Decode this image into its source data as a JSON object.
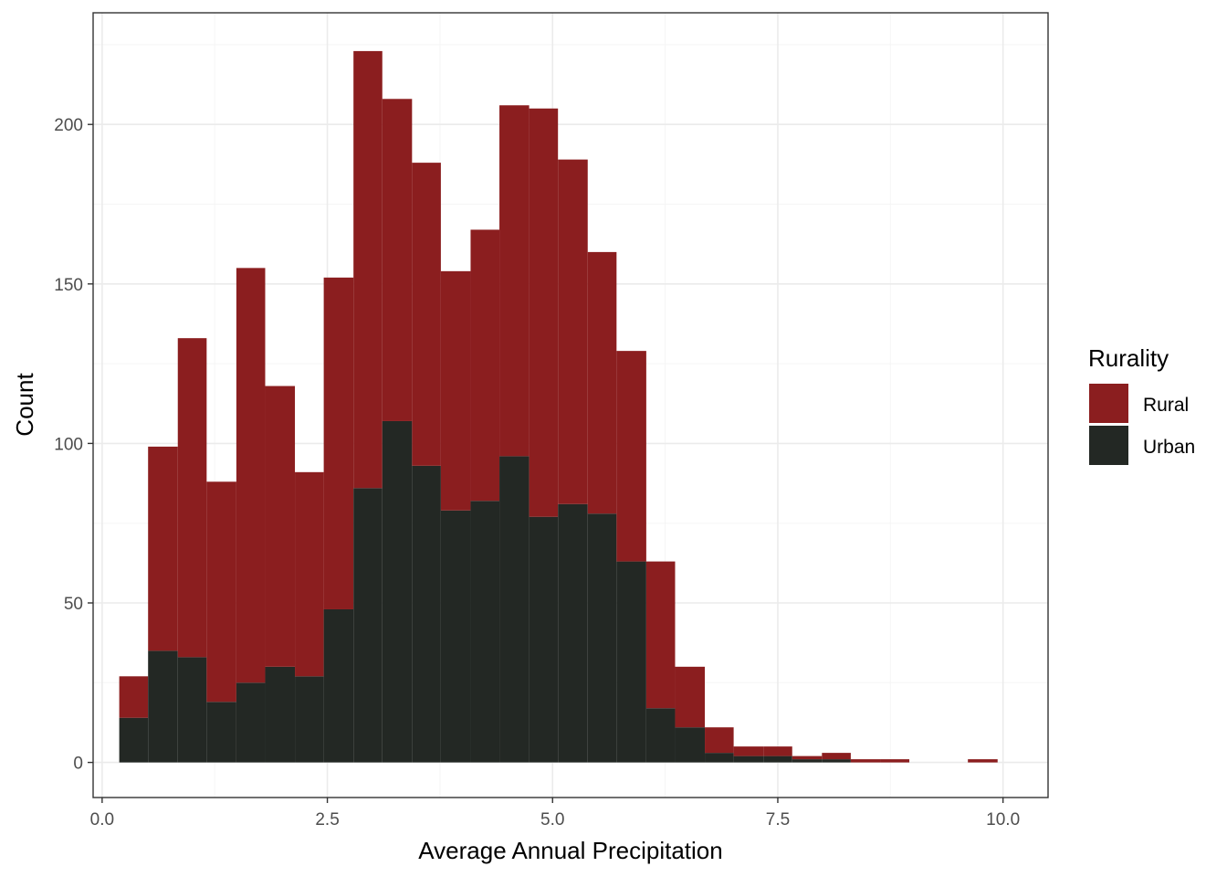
{
  "chart_data": {
    "type": "bar",
    "subtype": "stacked-histogram",
    "xlabel": "Average Annual Precipitation",
    "ylabel": "Count",
    "xlim": [
      -0.1,
      10.5
    ],
    "ylim": [
      -11,
      235
    ],
    "x_ticks": [
      0,
      2.5,
      5,
      7.5,
      10
    ],
    "x_tick_labels": [
      "0.0",
      "2.5",
      "5.0",
      "7.5",
      "10.0"
    ],
    "y_ticks": [
      0,
      50,
      100,
      150,
      200
    ],
    "y_tick_labels": [
      "0",
      "50",
      "100",
      "150",
      "200"
    ],
    "grid": true,
    "legend": {
      "title": "Rurality",
      "position": "right"
    },
    "bin_width": 0.325,
    "bins": [
      {
        "x0": 0.19,
        "x1": 0.51
      },
      {
        "x0": 0.51,
        "x1": 0.84
      },
      {
        "x0": 0.84,
        "x1": 1.16
      },
      {
        "x0": 1.16,
        "x1": 1.49
      },
      {
        "x0": 1.49,
        "x1": 1.81
      },
      {
        "x0": 1.81,
        "x1": 2.14
      },
      {
        "x0": 2.14,
        "x1": 2.46
      },
      {
        "x0": 2.46,
        "x1": 2.79
      },
      {
        "x0": 2.79,
        "x1": 3.11
      },
      {
        "x0": 3.11,
        "x1": 3.44
      },
      {
        "x0": 3.44,
        "x1": 3.76
      },
      {
        "x0": 3.76,
        "x1": 4.09
      },
      {
        "x0": 4.09,
        "x1": 4.41
      },
      {
        "x0": 4.41,
        "x1": 4.74
      },
      {
        "x0": 4.74,
        "x1": 5.06
      },
      {
        "x0": 5.06,
        "x1": 5.39
      },
      {
        "x0": 5.39,
        "x1": 5.71
      },
      {
        "x0": 5.71,
        "x1": 6.04
      },
      {
        "x0": 6.04,
        "x1": 6.36
      },
      {
        "x0": 6.36,
        "x1": 6.69
      },
      {
        "x0": 6.69,
        "x1": 7.01
      },
      {
        "x0": 7.01,
        "x1": 7.34
      },
      {
        "x0": 7.34,
        "x1": 7.66
      },
      {
        "x0": 7.66,
        "x1": 7.99
      },
      {
        "x0": 7.99,
        "x1": 8.31
      },
      {
        "x0": 8.31,
        "x1": 8.64
      },
      {
        "x0": 8.64,
        "x1": 8.96
      },
      {
        "x0": 8.96,
        "x1": 9.29
      },
      {
        "x0": 9.29,
        "x1": 9.61
      },
      {
        "x0": 9.61,
        "x1": 9.94
      }
    ],
    "series": [
      {
        "name": "Rural",
        "color": "#8B1E1F",
        "values": [
          13,
          64,
          100,
          69,
          130,
          88,
          64,
          104,
          137,
          101,
          95,
          75,
          85,
          110,
          128,
          108,
          82,
          66,
          46,
          19,
          8,
          3,
          3,
          1,
          2,
          1,
          1,
          0,
          0,
          1
        ]
      },
      {
        "name": "Urban",
        "color": "#232824",
        "values": [
          14,
          35,
          33,
          19,
          25,
          30,
          27,
          48,
          86,
          107,
          93,
          79,
          82,
          96,
          77,
          81,
          78,
          63,
          17,
          11,
          3,
          2,
          2,
          1,
          1,
          0,
          0,
          0,
          0,
          0
        ]
      }
    ]
  },
  "colors": {
    "panel_border": "#333333",
    "grid_major": "#EBEBEB",
    "grid_minor": "#F5F5F5"
  }
}
